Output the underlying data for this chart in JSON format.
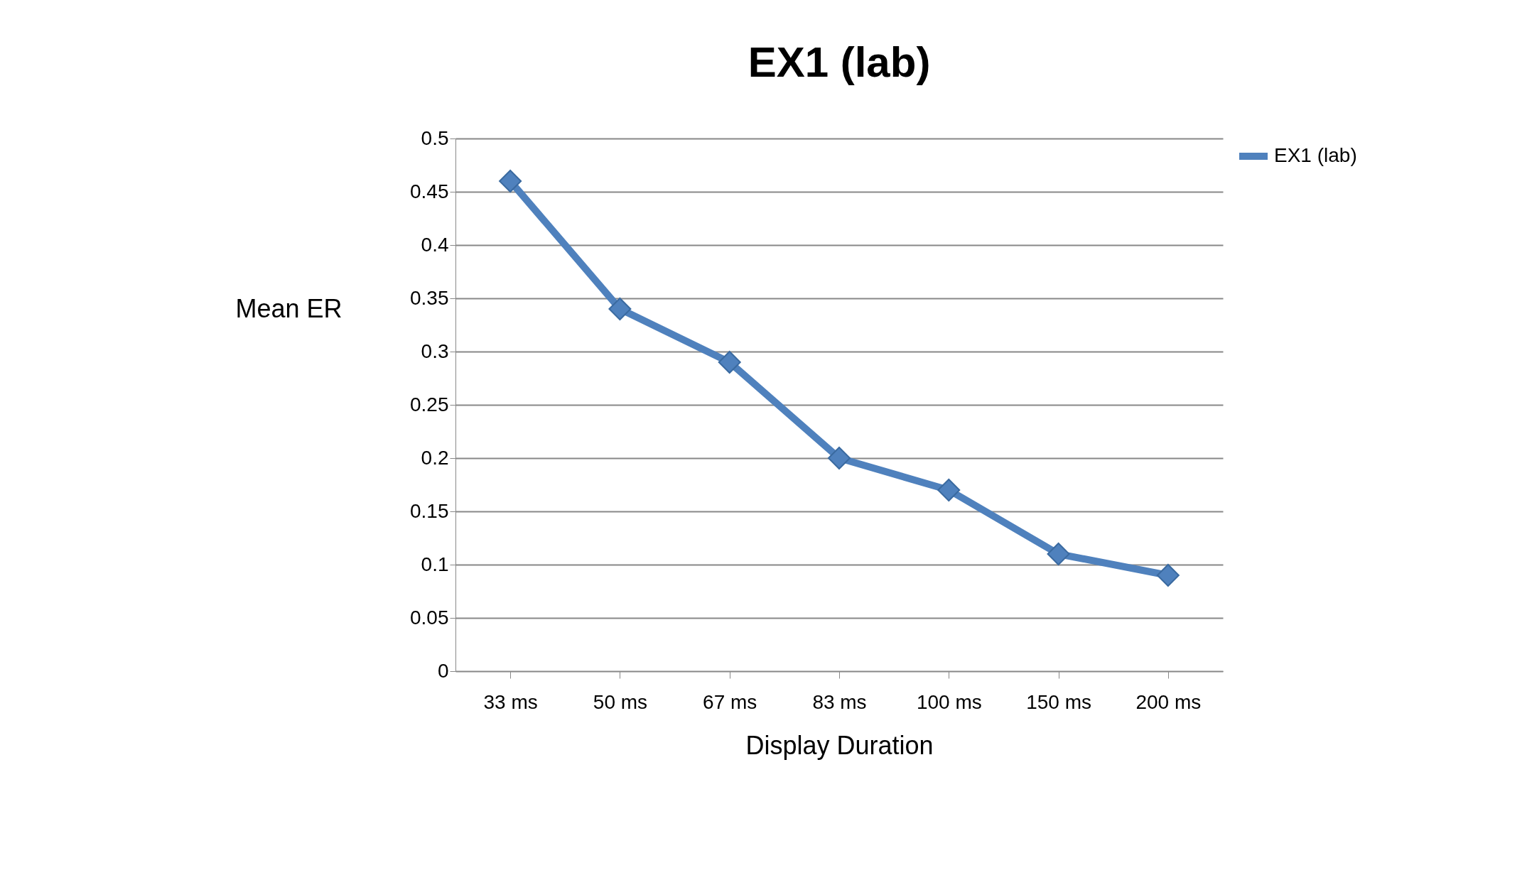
{
  "chart_data": {
    "type": "line",
    "title": "EX1 (lab)",
    "xlabel": "Display Duration",
    "ylabel": "Mean ER",
    "categories": [
      "33 ms",
      "50 ms",
      "67 ms",
      "83 ms",
      "100 ms",
      "150 ms",
      "200 ms"
    ],
    "series": [
      {
        "name": "EX1 (lab)",
        "color": "#4f81bd",
        "values": [
          0.46,
          0.34,
          0.29,
          0.2,
          0.17,
          0.11,
          0.09
        ]
      }
    ],
    "ylim": [
      0,
      0.5
    ],
    "yticks": [
      0,
      0.05,
      0.1,
      0.15,
      0.2,
      0.25,
      0.3,
      0.35,
      0.4,
      0.45,
      0.5
    ],
    "grid": "y",
    "legend": "right",
    "marker": "diamond",
    "line_style": "solid"
  }
}
